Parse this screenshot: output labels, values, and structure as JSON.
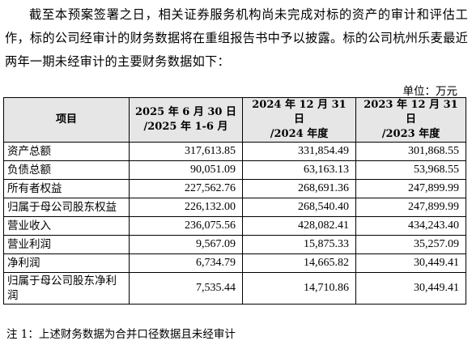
{
  "intro_paragraph": "截至本预案签署之日，相关证券服务机构尚未完成对标的资产的审计和评估工作，标的公司经审计的财务数据将在重组报告书中予以披露。标的公司杭州乐麦最近两年一期未经审计的主要财务数据如下：",
  "unit_label": "单位：万元",
  "table": {
    "headers": [
      {
        "line1": "项目",
        "line2": ""
      },
      {
        "line1": "2025 年 6 月 30 日",
        "line2": "/2025 年 1-6 月"
      },
      {
        "line1": "2024 年 12 月 31 日",
        "line2": "/2024 年度"
      },
      {
        "line1": "2023 年 12 月 31 日",
        "line2": "/2023 年度"
      }
    ],
    "rows": [
      {
        "item": "资产总额",
        "v2025": "317,613.85",
        "v2024": "331,854.49",
        "v2023": "301,868.55"
      },
      {
        "item": "负债总额",
        "v2025": "90,051.09",
        "v2024": "63,163.13",
        "v2023": "53,968.55"
      },
      {
        "item": "所有者权益",
        "v2025": "227,562.76",
        "v2024": "268,691.36",
        "v2023": "247,899.99"
      },
      {
        "item": "归属于母公司股东权益",
        "v2025": "226,132.00",
        "v2024": "268,540.40",
        "v2023": "247,899.99"
      },
      {
        "item": "营业收入",
        "v2025": "236,075.56",
        "v2024": "428,082.41",
        "v2023": "434,243.40"
      },
      {
        "item": "营业利润",
        "v2025": "9,567.09",
        "v2024": "15,875.33",
        "v2023": "35,257.09"
      },
      {
        "item": "净利润",
        "v2025": "6,734.79",
        "v2024": "14,665.82",
        "v2023": "30,449.41"
      },
      {
        "item": "归属于母公司股东净利润",
        "v2025": "7,535.44",
        "v2024": "14,710.86",
        "v2023": "30,449.41"
      }
    ]
  },
  "footnote": "注 1：上述财务数据为合并口径数据且未经审计"
}
